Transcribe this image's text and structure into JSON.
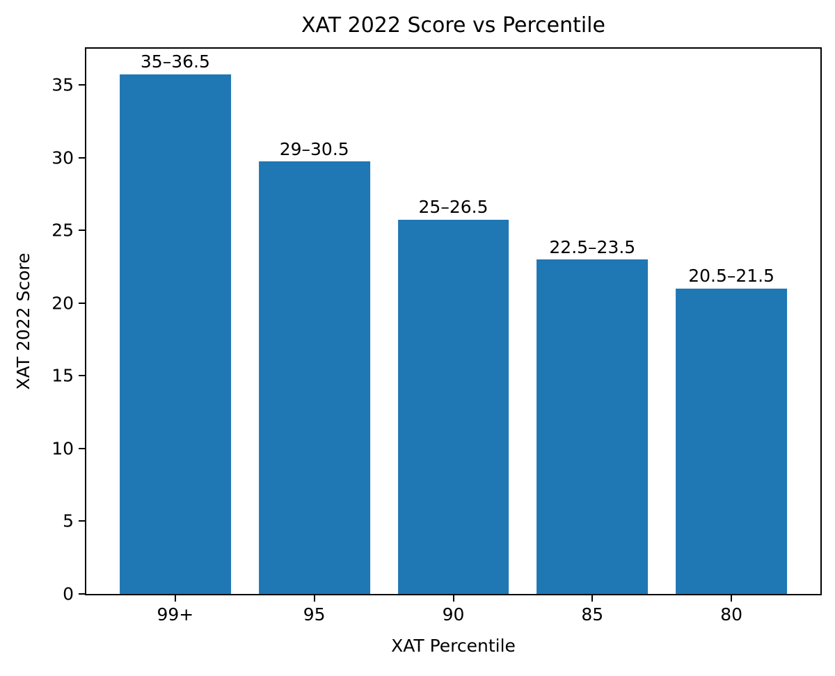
{
  "figure": {
    "background_color": "#ffffff",
    "text_color": "#000000"
  },
  "chart_data": {
    "type": "bar",
    "title": "XAT 2022 Score vs Percentile",
    "xlabel": "XAT Percentile",
    "ylabel": "XAT 2022 Score",
    "categories": [
      "99+",
      "95",
      "90",
      "85",
      "80"
    ],
    "values": [
      35.75,
      29.75,
      25.75,
      23,
      21
    ],
    "bar_labels": [
      "35–36.5",
      "29–30.5",
      "25–26.5",
      "22.5–23.5",
      "20.5–21.5"
    ],
    "yticks": [
      0,
      5,
      10,
      15,
      20,
      25,
      30,
      35
    ],
    "ylim": [
      0,
      37.5
    ],
    "bar_color": "#1f77b4",
    "bar_width_fraction": 0.8,
    "x_margin_units": 0.64,
    "grid": false,
    "legend": "none"
  }
}
